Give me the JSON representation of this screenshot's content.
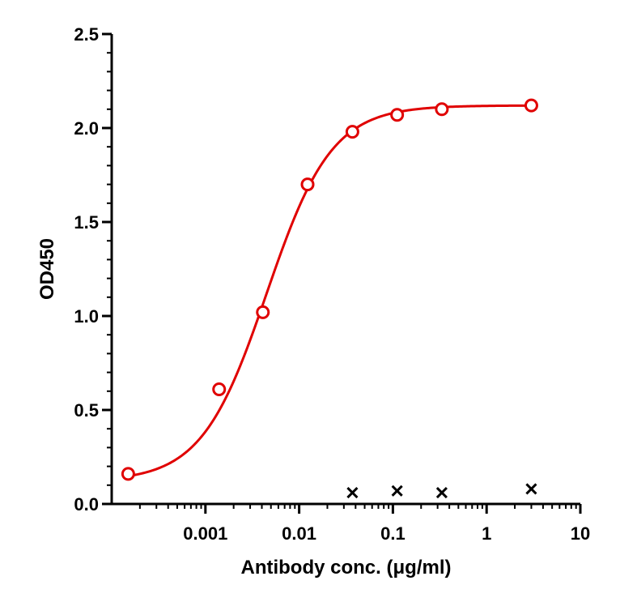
{
  "chart_data": {
    "type": "scatter",
    "title": "",
    "xlabel": "Antibody conc. (μg/ml)",
    "ylabel": "OD450",
    "x_scale": "log",
    "xlim": [
      0.0001,
      10
    ],
    "ylim": [
      0,
      2.5
    ],
    "x_ticks": [
      0.001,
      0.01,
      0.1,
      1,
      10
    ],
    "x_tick_labels": [
      "0.001",
      "0.01",
      "0.1",
      "1",
      "10"
    ],
    "y_ticks": [
      0.0,
      0.5,
      1.0,
      1.5,
      2.0,
      2.5
    ],
    "y_tick_labels": [
      "0.0",
      "0.5",
      "1.0",
      "1.5",
      "2.0",
      "2.5"
    ],
    "grid": false,
    "legend": "none",
    "series": [
      {
        "marker": "circle",
        "color": "#e00000",
        "x": [
          0.00015,
          0.0014,
          0.0041,
          0.0123,
          0.037,
          0.111,
          0.333,
          3.0
        ],
        "y": [
          0.16,
          0.61,
          1.02,
          1.7,
          1.98,
          2.07,
          2.1,
          2.12
        ],
        "fit": {
          "type": "4PL",
          "bottom": 0.12,
          "top": 2.12,
          "ec50": 0.0045,
          "hill": 1.25
        }
      },
      {
        "marker": "x",
        "color": "#000000",
        "x": [
          0.037,
          0.111,
          0.333,
          3.0
        ],
        "y": [
          0.06,
          0.07,
          0.06,
          0.08
        ]
      }
    ]
  }
}
